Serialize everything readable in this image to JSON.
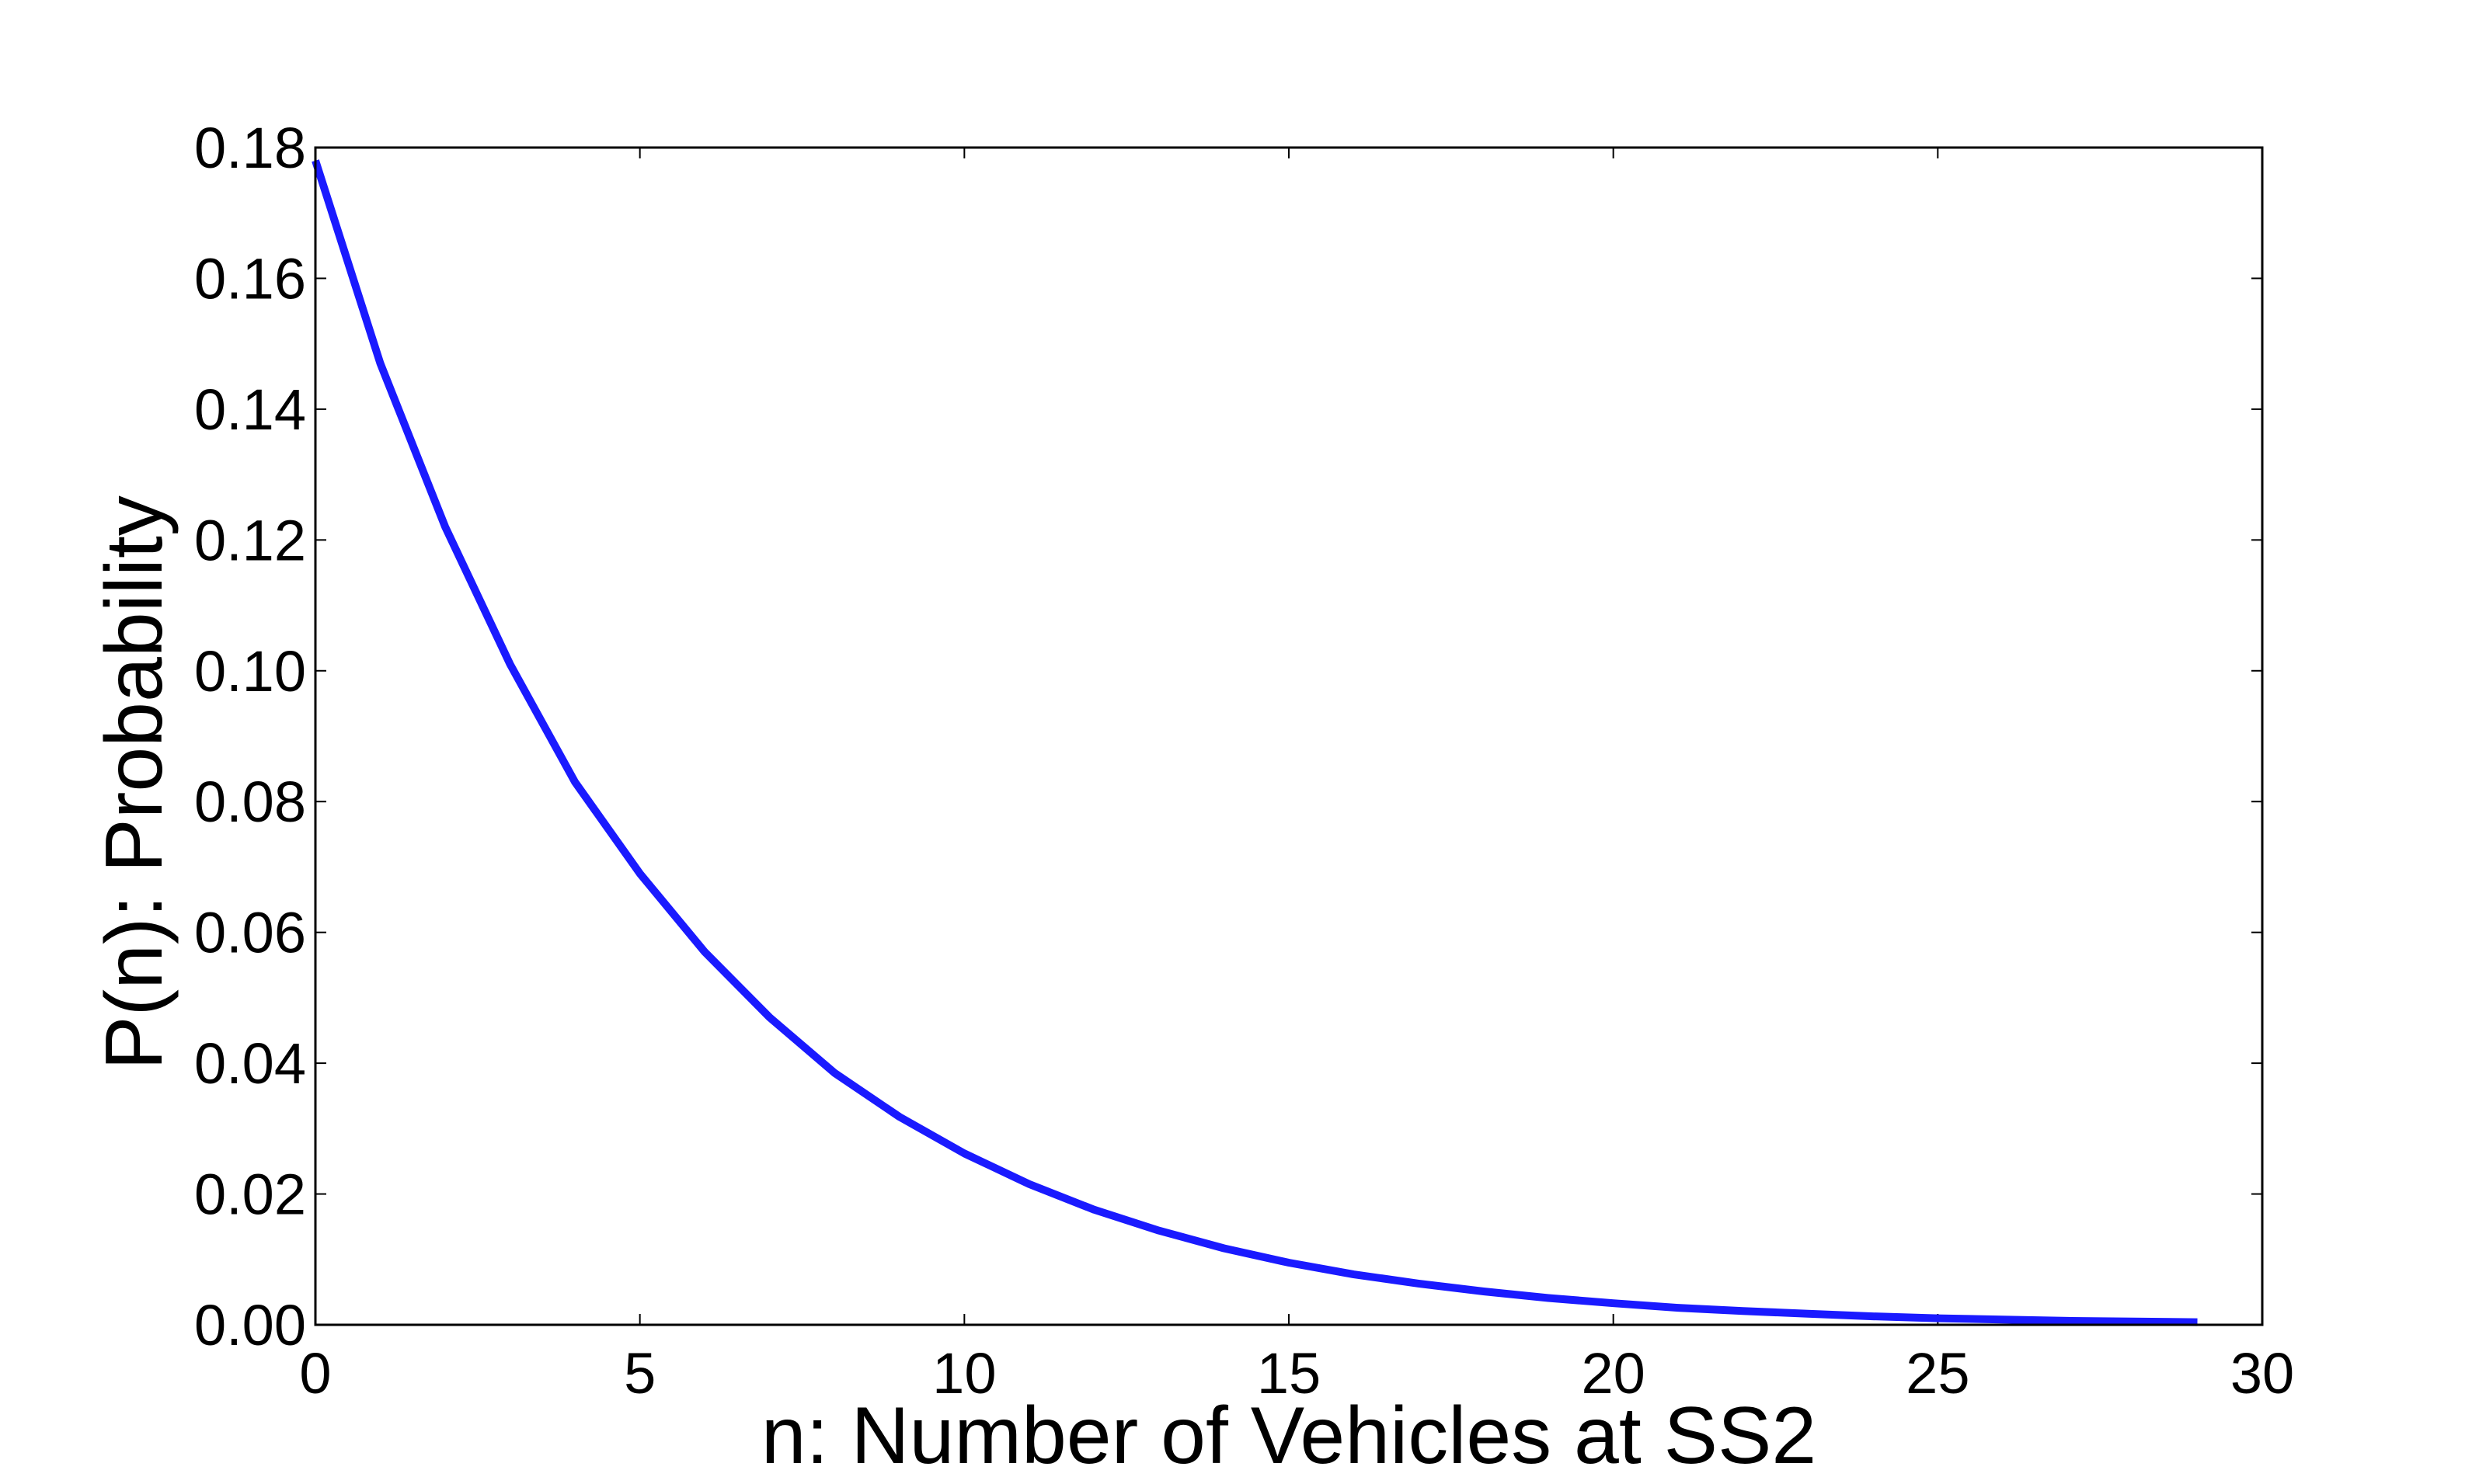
{
  "chart_data": {
    "type": "line",
    "title": "",
    "xlabel": "n: Number of Vehicles at SS2",
    "ylabel": "P(n): Probability",
    "xlim": [
      0,
      30
    ],
    "ylim": [
      0,
      0.18
    ],
    "xticks": [
      0,
      5,
      10,
      15,
      20,
      25,
      30
    ],
    "xtick_labels": [
      "0",
      "5",
      "10",
      "15",
      "20",
      "25",
      "30"
    ],
    "yticks": [
      0,
      0.02,
      0.04,
      0.06,
      0.08,
      0.1,
      0.12,
      0.14,
      0.16,
      0.18
    ],
    "ytick_labels": [
      "0.00",
      "0.02",
      "0.04",
      "0.06",
      "0.08",
      "0.10",
      "0.12",
      "0.14",
      "0.16",
      "0.18"
    ],
    "grid": false,
    "legend": "none",
    "series": [
      {
        "color": "#1a1aff",
        "x": [
          0,
          1,
          2,
          3,
          4,
          5,
          6,
          7,
          8,
          9,
          10,
          11,
          12,
          13,
          14,
          15,
          16,
          17,
          18,
          19,
          20,
          21,
          22,
          23,
          24,
          25,
          26,
          27,
          28,
          29
        ],
        "y": [
          0.178,
          0.147,
          0.122,
          0.101,
          0.083,
          0.069,
          0.057,
          0.047,
          0.0385,
          0.0318,
          0.0262,
          0.0215,
          0.0176,
          0.0144,
          0.0117,
          0.0095,
          0.0077,
          0.0063,
          0.0051,
          0.0041,
          0.0033,
          0.0026,
          0.0021,
          0.0017,
          0.0013,
          0.001,
          0.0008,
          0.0006,
          0.0005,
          0.0004
        ]
      }
    ]
  }
}
